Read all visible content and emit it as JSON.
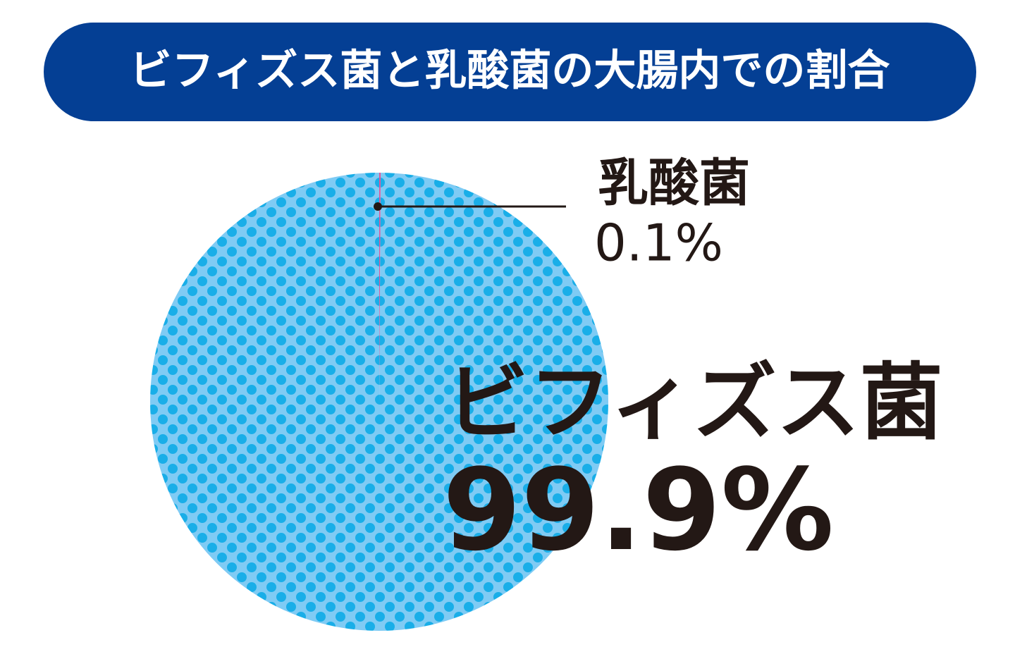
{
  "chart_data": {
    "type": "pie",
    "title": "ビフィズス菌と乳酸菌の大腸内での割合",
    "categories": [
      "乳酸菌",
      "ビフィズス菌"
    ],
    "values": [
      0.1,
      99.9
    ],
    "value_labels": [
      "0.1%",
      "99.9%"
    ],
    "colors": [
      "#e0559a",
      "#7fcbf4"
    ]
  }
}
